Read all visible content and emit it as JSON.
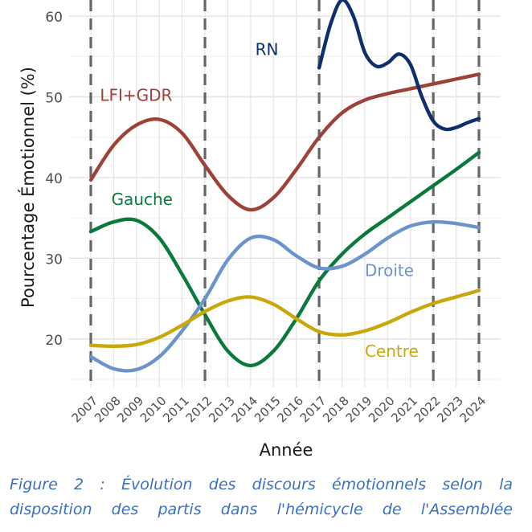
{
  "caption": {
    "line1": "Figure 2 : Évolution des discours émotionnels selon la",
    "line2": "disposition des partis dans l'hémicycle de l'Assemblée"
  },
  "chart_data": {
    "type": "line",
    "xlabel": "Année",
    "ylabel": "Pourcentage Émotionnel (%)",
    "xlim": [
      2007,
      2024
    ],
    "ylim": [
      14,
      62
    ],
    "yticks": [
      20,
      30,
      40,
      50,
      60
    ],
    "x": [
      2007,
      2008,
      2009,
      2010,
      2011,
      2012,
      2013,
      2014,
      2015,
      2016,
      2017,
      2018,
      2019,
      2020,
      2021,
      2022,
      2023,
      2024
    ],
    "vlines": [
      2007,
      2012,
      2017,
      2022,
      2024
    ],
    "grid": true,
    "series": [
      {
        "name": "LFI+GDR",
        "color": "#9c4239",
        "points": [
          [
            2007,
            39.7
          ],
          [
            2008,
            44
          ],
          [
            2009,
            46.5
          ],
          [
            2010,
            47.2
          ],
          [
            2011,
            45.5
          ],
          [
            2012,
            41.5
          ],
          [
            2013,
            37.8
          ],
          [
            2014,
            36
          ],
          [
            2015,
            37.5
          ],
          [
            2016,
            41
          ],
          [
            2017,
            45
          ],
          [
            2018,
            48
          ],
          [
            2019,
            49.6
          ],
          [
            2020,
            50.4
          ],
          [
            2021,
            51
          ],
          [
            2022,
            51.6
          ],
          [
            2023,
            52.2
          ],
          [
            2024,
            52.8
          ]
        ],
        "label": {
          "text": "LFI+GDR",
          "x": 2007.4,
          "y": 49.5
        }
      },
      {
        "name": "RN",
        "color": "#0e2f6c",
        "points": [
          [
            2017,
            53.6
          ],
          [
            2017.5,
            59
          ],
          [
            2018,
            62
          ],
          [
            2018.5,
            60
          ],
          [
            2019,
            55.5
          ],
          [
            2019.5,
            53.8
          ],
          [
            2020,
            54.2
          ],
          [
            2020.5,
            55.3
          ],
          [
            2021,
            54
          ],
          [
            2021.5,
            50
          ],
          [
            2022,
            47
          ],
          [
            2022.5,
            46
          ],
          [
            2023,
            46.2
          ],
          [
            2023.5,
            46.8
          ],
          [
            2024,
            47.3
          ]
        ],
        "label": {
          "text": "RN",
          "x": 2014.2,
          "y": 55.2
        }
      },
      {
        "name": "Gauche",
        "color": "#0a7a3c",
        "points": [
          [
            2007,
            33.3
          ],
          [
            2008,
            34.5
          ],
          [
            2009,
            34.7
          ],
          [
            2010,
            32.5
          ],
          [
            2011,
            28
          ],
          [
            2012,
            23
          ],
          [
            2013,
            18.5
          ],
          [
            2014,
            16.7
          ],
          [
            2015,
            18.5
          ],
          [
            2016,
            22.5
          ],
          [
            2017,
            27.2
          ],
          [
            2018,
            30.5
          ],
          [
            2019,
            33
          ],
          [
            2020,
            35
          ],
          [
            2021,
            37
          ],
          [
            2022,
            39
          ],
          [
            2023,
            41
          ],
          [
            2024,
            43.1
          ]
        ],
        "label": {
          "text": "Gauche",
          "x": 2007.9,
          "y": 36.6
        }
      },
      {
        "name": "Droite",
        "color": "#6b93cc",
        "points": [
          [
            2007,
            17.8
          ],
          [
            2008,
            16.3
          ],
          [
            2009,
            16.2
          ],
          [
            2010,
            17.8
          ],
          [
            2011,
            21
          ],
          [
            2012,
            25
          ],
          [
            2013,
            29.8
          ],
          [
            2014,
            32.5
          ],
          [
            2015,
            32.3
          ],
          [
            2016,
            30.3
          ],
          [
            2017,
            28.8
          ],
          [
            2018,
            29
          ],
          [
            2019,
            30.5
          ],
          [
            2020,
            32.5
          ],
          [
            2021,
            34
          ],
          [
            2022,
            34.5
          ],
          [
            2023,
            34.3
          ],
          [
            2024,
            33.8
          ]
        ],
        "label": {
          "text": "Droite",
          "x": 2019,
          "y": 27.8
        }
      },
      {
        "name": "Centre",
        "color": "#c9a80b",
        "points": [
          [
            2007,
            19.2
          ],
          [
            2008,
            19.1
          ],
          [
            2009,
            19.3
          ],
          [
            2010,
            20.2
          ],
          [
            2011,
            21.7
          ],
          [
            2012,
            23.4
          ],
          [
            2013,
            24.7
          ],
          [
            2014,
            25.2
          ],
          [
            2015,
            24.3
          ],
          [
            2016,
            22.5
          ],
          [
            2017,
            20.9
          ],
          [
            2018,
            20.5
          ],
          [
            2019,
            21
          ],
          [
            2020,
            22
          ],
          [
            2021,
            23.3
          ],
          [
            2022,
            24.4
          ],
          [
            2023,
            25.2
          ],
          [
            2024,
            26
          ]
        ],
        "label": {
          "text": "Centre",
          "x": 2019,
          "y": 17.8
        }
      }
    ]
  }
}
